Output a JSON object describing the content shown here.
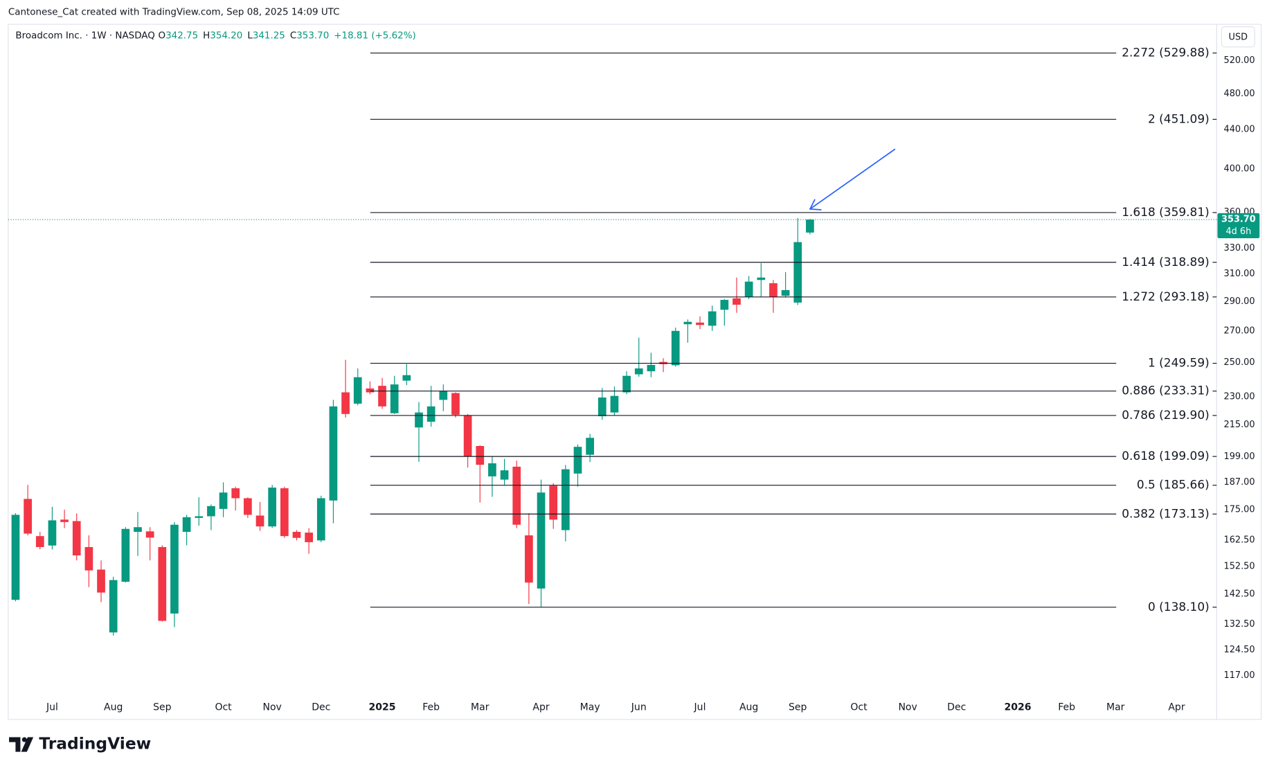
{
  "header": {
    "credit": "Cantonese_Cat created with TradingView.com, Sep 08, 2025 14:09 UTC",
    "symbol": "Broadcom Inc. · 1W · NASDAQ",
    "ohlc": [
      {
        "key": "O",
        "value": "342.75"
      },
      {
        "key": "H",
        "value": "354.20"
      },
      {
        "key": "L",
        "value": "341.25"
      },
      {
        "key": "C",
        "value": "353.70"
      }
    ],
    "change": "+18.81 (+5.62%)",
    "currency": "USD"
  },
  "footer": {
    "brand": "TradingView"
  },
  "chart_data": {
    "type": "candlestick",
    "up_color": "#089981",
    "down_color": "#f23645",
    "log_scale": true,
    "grid": false,
    "categories": [
      null,
      null,
      null,
      "Jul",
      null,
      null,
      null,
      null,
      "Aug",
      null,
      null,
      null,
      "Sep",
      null,
      null,
      null,
      null,
      "Oct",
      null,
      null,
      null,
      "Nov",
      null,
      null,
      null,
      "Dec",
      null,
      null,
      null,
      null,
      "2025",
      null,
      null,
      null,
      "Feb",
      null,
      null,
      null,
      "Mar",
      null,
      null,
      null,
      null,
      "Apr",
      null,
      null,
      null,
      "May",
      null,
      null,
      null,
      "Jun",
      null,
      null,
      null,
      null,
      "Jul",
      null,
      null,
      null,
      "Aug",
      null,
      null,
      null,
      "Sep",
      null,
      null,
      null,
      null,
      "Oct",
      null,
      null,
      null,
      "Nov",
      null,
      null,
      null,
      "Dec",
      null,
      null,
      null,
      null,
      "2026",
      null,
      null,
      null,
      "Feb",
      null,
      null,
      null,
      "Mar",
      null,
      null,
      null,
      null,
      "Apr",
      null,
      null,
      null
    ],
    "open": [
      140.6,
      179.6,
      164.1,
      160.4,
      170.8,
      170.2,
      159.8,
      151.3,
      129.9,
      146.9,
      165.8,
      166.0,
      159.8,
      136.0,
      165.8,
      171.5,
      172.2,
      175.3,
      184.3,
      179.9,
      172.5,
      168.0,
      184.3,
      165.8,
      165.5,
      162.4,
      178.9,
      232.6,
      226.3,
      234.8,
      236.3,
      221.1,
      239.3,
      213.6,
      216.6,
      228.4,
      232.2,
      219.9,
      204.2,
      189.7,
      188.2,
      194.2,
      164.4,
      144.5,
      185.4,
      166.5,
      191.0,
      199.9,
      219.5,
      221.5,
      232.6,
      243.0,
      244.8,
      250.4,
      248.4,
      274.4,
      275.5,
      273.4,
      284.2,
      292.2,
      293.3,
      305.5,
      303.1,
      294.0,
      289.2,
      342.75,
      null,
      null,
      null,
      null,
      null,
      null,
      null,
      null,
      null,
      null,
      null,
      null,
      null,
      null,
      null,
      null,
      null,
      null,
      null,
      null,
      null,
      null,
      null,
      null,
      null,
      null,
      null,
      null,
      null,
      null,
      null,
      null,
      null
    ],
    "high": [
      173.5,
      185.8,
      165.8,
      176.2,
      175.0,
      173.4,
      164.4,
      154.7,
      148.7,
      167.7,
      174.0,
      167.7,
      160.5,
      169.8,
      172.8,
      180.3,
      177.2,
      187.0,
      185.0,
      180.3,
      178.3,
      185.8,
      185.0,
      166.5,
      167.3,
      181.0,
      228.4,
      251.7,
      246.5,
      238.9,
      240.9,
      242.1,
      249.1,
      227.2,
      236.3,
      237.1,
      232.6,
      220.7,
      204.6,
      199.1,
      197.9,
      197.1,
      173.5,
      188.2,
      186.6,
      195.0,
      205.0,
      210.3,
      235.1,
      235.9,
      244.8,
      265.6,
      256.1,
      252.7,
      272.2,
      277.6,
      279.7,
      287.1,
      291.7,
      307.3,
      308.5,
      318.2,
      305.5,
      311.4,
      355.0,
      354.2,
      null,
      null,
      null,
      null,
      null,
      null,
      null,
      null,
      null,
      null,
      null,
      null,
      null,
      null,
      null,
      null,
      null,
      null,
      null,
      null,
      null,
      null,
      null,
      null,
      null,
      null,
      null,
      null,
      null,
      null,
      null,
      null,
      null
    ],
    "low": [
      140.1,
      164.4,
      158.9,
      158.9,
      167.3,
      154.7,
      145.0,
      139.8,
      128.9,
      146.6,
      156.4,
      154.7,
      133.4,
      131.6,
      160.5,
      168.3,
      166.5,
      171.8,
      174.6,
      171.5,
      166.2,
      167.4,
      163.4,
      162.4,
      157.2,
      161.7,
      169.3,
      218.8,
      225.4,
      231.5,
      223.5,
      220.7,
      236.7,
      196.5,
      214.0,
      222.2,
      218.8,
      193.8,
      178.0,
      180.5,
      185.8,
      167.3,
      139.2,
      138.1,
      167.0,
      162.0,
      185.0,
      196.4,
      217.6,
      219.9,
      231.5,
      241.6,
      241.3,
      244.3,
      247.6,
      262.4,
      271.2,
      270.0,
      273.4,
      282.1,
      291.7,
      293.3,
      282.1,
      292.8,
      287.5,
      341.25,
      null,
      null,
      null,
      null,
      null,
      null,
      null,
      null,
      null,
      null,
      null,
      null,
      null,
      null,
      null,
      null,
      null,
      null,
      null,
      null,
      null,
      null,
      null,
      null,
      null,
      null,
      null,
      null,
      null,
      null,
      null,
      null,
      null
    ],
    "close": [
      172.8,
      165.1,
      159.8,
      170.5,
      169.8,
      156.6,
      151.0,
      143.1,
      147.5,
      167.0,
      167.7,
      163.5,
      133.6,
      168.7,
      171.8,
      172.2,
      176.5,
      182.4,
      179.9,
      172.8,
      168.0,
      184.6,
      164.1,
      163.4,
      161.7,
      179.9,
      224.8,
      220.7,
      241.3,
      232.6,
      224.8,
      237.1,
      242.5,
      221.5,
      224.8,
      233.4,
      220.3,
      199.1,
      195.1,
      195.8,
      192.5,
      168.7,
      146.6,
      182.4,
      170.8,
      193.0,
      203.8,
      208.3,
      229.7,
      230.6,
      242.1,
      246.5,
      248.6,
      249.1,
      270.0,
      276.0,
      273.9,
      283.1,
      291.1,
      287.7,
      304.3,
      307.3,
      293.3,
      298.1,
      334.9,
      353.7,
      null,
      null,
      null,
      null,
      null,
      null,
      null,
      null,
      null,
      null,
      null,
      null,
      null,
      null,
      null,
      null,
      null,
      null,
      null,
      null,
      null,
      null,
      null,
      null,
      null,
      null,
      null,
      null,
      null,
      null,
      null,
      null,
      null
    ],
    "ylim": [
      111.8,
      568.1
    ],
    "yticks": [
      {
        "value": 117,
        "label": "117.00"
      },
      {
        "value": 124.5,
        "label": "124.50"
      },
      {
        "value": 132.5,
        "label": "132.50"
      },
      {
        "value": 142.5,
        "label": "142.50"
      },
      {
        "value": 152.5,
        "label": "152.50"
      },
      {
        "value": 162.5,
        "label": "162.50"
      },
      {
        "value": 175,
        "label": "175.00"
      },
      {
        "value": 187,
        "label": "187.00"
      },
      {
        "value": 199,
        "label": "199.00"
      },
      {
        "value": 215,
        "label": "215.00"
      },
      {
        "value": 230,
        "label": "230.00"
      },
      {
        "value": 250,
        "label": "250.00"
      },
      {
        "value": 270,
        "label": "270.00"
      },
      {
        "value": 290,
        "label": "290.00"
      },
      {
        "value": 310,
        "label": "310.00"
      },
      {
        "value": 330,
        "label": "330.00"
      },
      {
        "value": 360,
        "label": "360.00"
      },
      {
        "value": 400,
        "label": "400.00"
      },
      {
        "value": 440,
        "label": "440.00"
      },
      {
        "value": 480,
        "label": "480.00"
      },
      {
        "value": 520,
        "label": "520.00"
      }
    ],
    "fib_levels": [
      {
        "value": 529.88,
        "label": "2.272 (529.88)"
      },
      {
        "value": 451.09,
        "label": "2 (451.09)"
      },
      {
        "value": 359.81,
        "label": "1.618 (359.81)"
      },
      {
        "value": 318.89,
        "label": "1.414 (318.89)"
      },
      {
        "value": 293.18,
        "label": "1.272 (293.18)"
      },
      {
        "value": 249.59,
        "label": "1 (249.59)"
      },
      {
        "value": 233.31,
        "label": "0.886 (233.31)"
      },
      {
        "value": 219.9,
        "label": "0.786 (219.90)"
      },
      {
        "value": 199.09,
        "label": "0.618 (199.09)"
      },
      {
        "value": 185.66,
        "label": "0.5 (185.66)"
      },
      {
        "value": 173.13,
        "label": "0.382 (173.13)"
      },
      {
        "value": 138.1,
        "label": "0 (138.10)"
      }
    ],
    "last_price": {
      "value": 353.7,
      "label": "353.70"
    },
    "countdown": "4d 6h"
  }
}
